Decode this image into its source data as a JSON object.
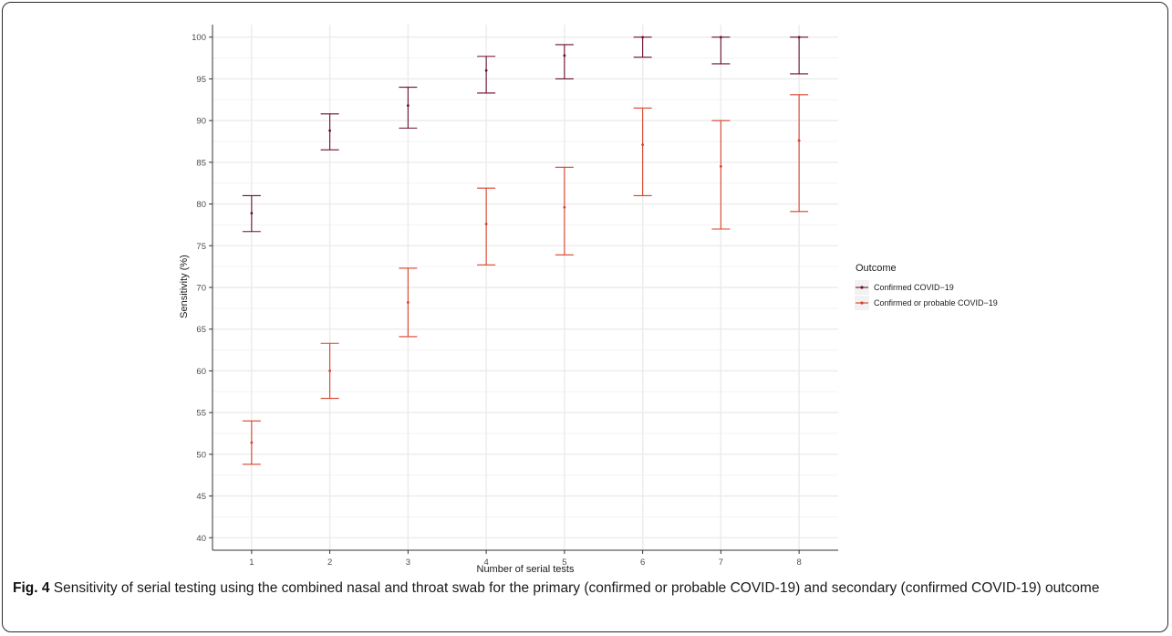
{
  "chart_data": {
    "type": "scatter",
    "subtype": "point-with-error-bars",
    "xlabel": "Number of serial tests",
    "ylabel": "Sensitivity (%)",
    "x": [
      1,
      2,
      3,
      4,
      5,
      6,
      7,
      8
    ],
    "x_ticks": [
      "1",
      "2",
      "3",
      "4",
      "5",
      "6",
      "7",
      "8"
    ],
    "ylim": [
      38.5,
      101.5
    ],
    "y_ticks": [
      40,
      45,
      50,
      55,
      60,
      65,
      70,
      75,
      80,
      85,
      90,
      95,
      100
    ],
    "grid": true,
    "legend_title": "Outcome",
    "legend_position": "right",
    "series": [
      {
        "name": "Confirmed COVID−19",
        "color": "#6b0f33",
        "values": [
          78.9,
          88.8,
          91.8,
          96.0,
          97.8,
          100.0,
          100.0,
          100.0
        ],
        "lower": [
          76.7,
          86.5,
          89.1,
          93.3,
          95.0,
          97.6,
          96.8,
          95.6
        ],
        "upper": [
          81.0,
          90.8,
          94.0,
          97.7,
          99.1,
          100.0,
          100.0,
          100.0
        ]
      },
      {
        "name": "Confirmed or probable COVID−19",
        "color": "#d8432a",
        "values": [
          51.4,
          60.0,
          68.2,
          77.6,
          79.6,
          87.1,
          84.5,
          87.6
        ],
        "lower": [
          48.8,
          56.7,
          64.1,
          72.7,
          73.9,
          81.0,
          77.0,
          79.1
        ],
        "upper": [
          54.0,
          63.3,
          72.3,
          81.9,
          84.4,
          91.5,
          90.0,
          93.1
        ]
      }
    ]
  },
  "caption": {
    "label": "Fig. 4",
    "text": "Sensitivity of serial testing using the combined nasal and throat swab for the primary (confirmed or probable COVID-19) and secondary (confirmed COVID-19) outcome"
  }
}
